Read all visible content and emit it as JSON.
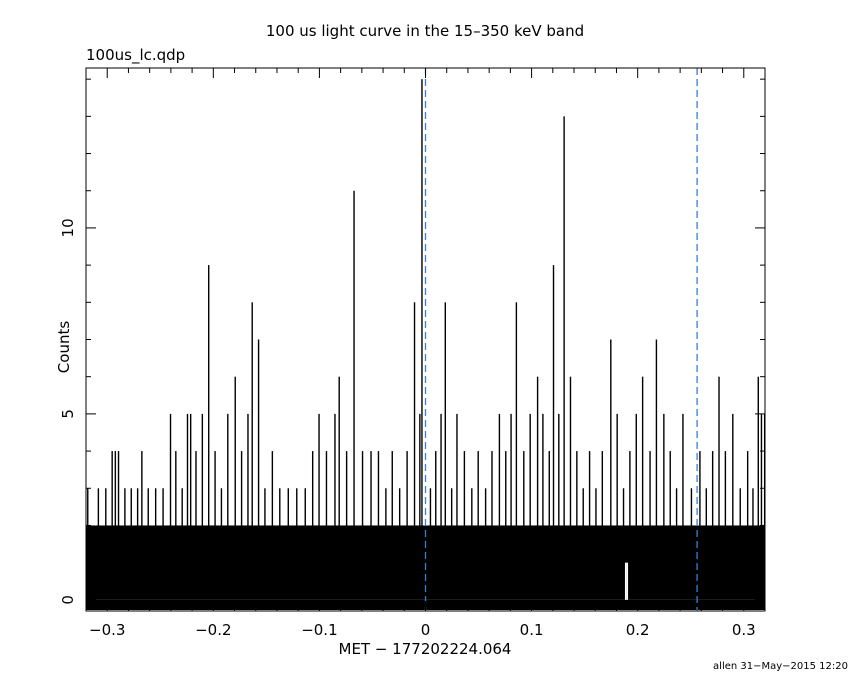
{
  "chart_data": {
    "type": "bar",
    "title": "100 us light curve in the 15–350 keV band",
    "file_label": "100us_lc.qdp",
    "xlabel": "MET − 177202224.064",
    "ylabel": "Counts",
    "footer": "allen 31−May−2015 12:20",
    "xlim": [
      -0.32,
      0.32
    ],
    "ylim": [
      -0.3,
      14.3
    ],
    "xticks": [
      -0.3,
      -0.2,
      -0.1,
      0,
      0.1,
      0.2,
      0.3
    ],
    "xtick_labels": [
      "−0.3",
      "−0.2",
      "−0.1",
      "0",
      "0.1",
      "0.2",
      "0.3"
    ],
    "yticks": [
      0,
      5,
      10
    ],
    "ytick_labels": [
      "0",
      "5",
      "10"
    ],
    "bin_width": 0.0001,
    "baseline_counts": 2,
    "vlines": [
      0.0,
      0.256
    ],
    "vline_color": "#3a7fd5",
    "bar_color": "#000000",
    "peaks": [
      {
        "x": -0.319,
        "y": 3
      },
      {
        "x": -0.309,
        "y": 3
      },
      {
        "x": -0.302,
        "y": 3
      },
      {
        "x": -0.296,
        "y": 4
      },
      {
        "x": -0.293,
        "y": 4
      },
      {
        "x": -0.29,
        "y": 4
      },
      {
        "x": -0.284,
        "y": 3
      },
      {
        "x": -0.278,
        "y": 3
      },
      {
        "x": -0.272,
        "y": 3
      },
      {
        "x": -0.268,
        "y": 4
      },
      {
        "x": -0.262,
        "y": 3
      },
      {
        "x": -0.255,
        "y": 3
      },
      {
        "x": -0.248,
        "y": 3
      },
      {
        "x": -0.241,
        "y": 5
      },
      {
        "x": -0.236,
        "y": 4
      },
      {
        "x": -0.23,
        "y": 3
      },
      {
        "x": -0.225,
        "y": 5
      },
      {
        "x": -0.222,
        "y": 5
      },
      {
        "x": -0.217,
        "y": 4
      },
      {
        "x": -0.211,
        "y": 5
      },
      {
        "x": -0.205,
        "y": 9
      },
      {
        "x": -0.199,
        "y": 4
      },
      {
        "x": -0.193,
        "y": 3
      },
      {
        "x": -0.187,
        "y": 5
      },
      {
        "x": -0.18,
        "y": 6
      },
      {
        "x": -0.174,
        "y": 4
      },
      {
        "x": -0.168,
        "y": 5
      },
      {
        "x": -0.164,
        "y": 8
      },
      {
        "x": -0.158,
        "y": 7
      },
      {
        "x": -0.152,
        "y": 3
      },
      {
        "x": -0.145,
        "y": 4
      },
      {
        "x": -0.138,
        "y": 3
      },
      {
        "x": -0.13,
        "y": 3
      },
      {
        "x": -0.122,
        "y": 3
      },
      {
        "x": -0.114,
        "y": 3
      },
      {
        "x": -0.107,
        "y": 4
      },
      {
        "x": -0.101,
        "y": 5
      },
      {
        "x": -0.094,
        "y": 4
      },
      {
        "x": -0.086,
        "y": 5
      },
      {
        "x": -0.082,
        "y": 6
      },
      {
        "x": -0.075,
        "y": 4
      },
      {
        "x": -0.068,
        "y": 11
      },
      {
        "x": -0.06,
        "y": 4
      },
      {
        "x": -0.052,
        "y": 4
      },
      {
        "x": -0.045,
        "y": 4
      },
      {
        "x": -0.038,
        "y": 3
      },
      {
        "x": -0.032,
        "y": 4
      },
      {
        "x": -0.025,
        "y": 3
      },
      {
        "x": -0.018,
        "y": 4
      },
      {
        "x": -0.011,
        "y": 8
      },
      {
        "x": -0.006,
        "y": 5
      },
      {
        "x": -0.004,
        "y": 14
      },
      {
        "x": 0.004,
        "y": 3
      },
      {
        "x": 0.009,
        "y": 4
      },
      {
        "x": 0.014,
        "y": 5
      },
      {
        "x": 0.018,
        "y": 8
      },
      {
        "x": 0.024,
        "y": 3
      },
      {
        "x": 0.029,
        "y": 5
      },
      {
        "x": 0.036,
        "y": 4
      },
      {
        "x": 0.043,
        "y": 3
      },
      {
        "x": 0.049,
        "y": 4
      },
      {
        "x": 0.056,
        "y": 3
      },
      {
        "x": 0.062,
        "y": 4
      },
      {
        "x": 0.069,
        "y": 5
      },
      {
        "x": 0.075,
        "y": 4
      },
      {
        "x": 0.08,
        "y": 5
      },
      {
        "x": 0.085,
        "y": 8
      },
      {
        "x": 0.092,
        "y": 4
      },
      {
        "x": 0.098,
        "y": 5
      },
      {
        "x": 0.105,
        "y": 6
      },
      {
        "x": 0.11,
        "y": 5
      },
      {
        "x": 0.116,
        "y": 4
      },
      {
        "x": 0.12,
        "y": 9
      },
      {
        "x": 0.125,
        "y": 5
      },
      {
        "x": 0.13,
        "y": 13
      },
      {
        "x": 0.136,
        "y": 6
      },
      {
        "x": 0.142,
        "y": 4
      },
      {
        "x": 0.148,
        "y": 3
      },
      {
        "x": 0.154,
        "y": 4
      },
      {
        "x": 0.16,
        "y": 3
      },
      {
        "x": 0.166,
        "y": 4
      },
      {
        "x": 0.174,
        "y": 7
      },
      {
        "x": 0.18,
        "y": 5
      },
      {
        "x": 0.186,
        "y": 3
      },
      {
        "x": 0.192,
        "y": 4
      },
      {
        "x": 0.198,
        "y": 5
      },
      {
        "x": 0.204,
        "y": 6
      },
      {
        "x": 0.211,
        "y": 4
      },
      {
        "x": 0.217,
        "y": 7
      },
      {
        "x": 0.224,
        "y": 5
      },
      {
        "x": 0.23,
        "y": 4
      },
      {
        "x": 0.236,
        "y": 3
      },
      {
        "x": 0.242,
        "y": 5
      },
      {
        "x": 0.25,
        "y": 3
      },
      {
        "x": 0.258,
        "y": 4
      },
      {
        "x": 0.264,
        "y": 3
      },
      {
        "x": 0.27,
        "y": 4
      },
      {
        "x": 0.276,
        "y": 6
      },
      {
        "x": 0.282,
        "y": 4
      },
      {
        "x": 0.289,
        "y": 5
      },
      {
        "x": 0.296,
        "y": 3
      },
      {
        "x": 0.303,
        "y": 4
      },
      {
        "x": 0.308,
        "y": 3
      },
      {
        "x": 0.313,
        "y": 6
      },
      {
        "x": 0.316,
        "y": 5
      },
      {
        "x": 0.319,
        "y": 5
      }
    ]
  }
}
